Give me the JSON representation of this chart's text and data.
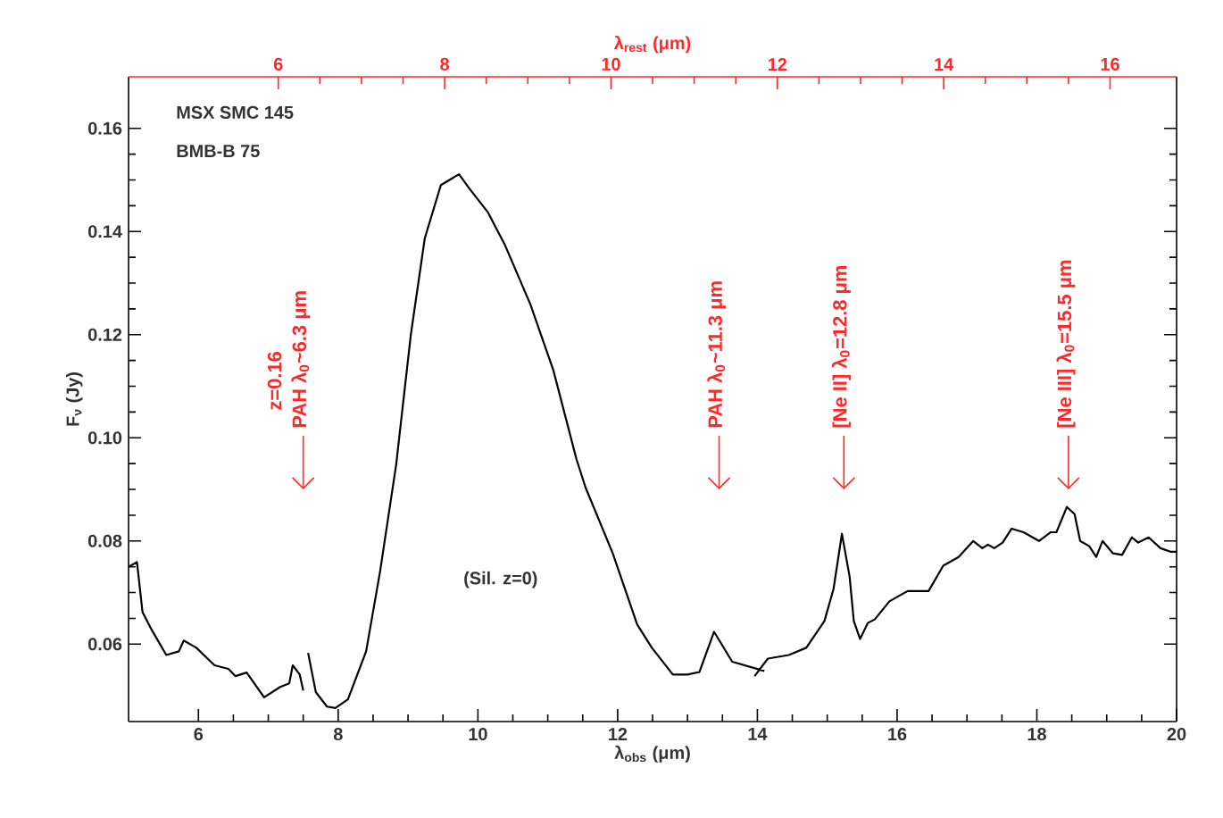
{
  "chart_data": {
    "type": "line",
    "title": "MSX SMC 145",
    "subtitle": "BMB-B 75",
    "xlabel": "λ$_{obs}$ (μm)",
    "ylabel": "F$_{ν}$ (Jy)",
    "x2label": "λ$_{rest}$ (μm)",
    "xlim": [
      5,
      20
    ],
    "xticks": [
      6,
      8,
      10,
      12,
      14,
      16,
      18,
      20
    ],
    "x2lim": [
      4.2,
      16.8
    ],
    "x2ticks": [
      6,
      8,
      10,
      12,
      14,
      16
    ],
    "ylim": [
      0.045,
      0.17
    ],
    "yticks": [
      {
        "value": 0.06,
        "label": "0.06"
      },
      {
        "value": 0.08,
        "label": "0.08"
      },
      {
        "value": 0.1,
        "label": "0.10"
      },
      {
        "value": 0.12,
        "label": "0.12"
      },
      {
        "value": 0.14,
        "label": "0.14"
      },
      {
        "value": 0.16,
        "label": "0.16"
      }
    ],
    "grid": false,
    "marker": "none",
    "line_style": "solid",
    "series": [
      {
        "color": "#000000",
        "x": [
          5.0,
          5.12,
          5.2,
          5.33,
          5.54,
          5.72,
          5.79,
          5.97,
          6.23,
          6.43,
          6.53,
          6.69,
          6.94,
          7.17,
          7.3,
          7.35,
          7.45,
          7.5,
          7.53,
          7.57,
          7.68,
          7.84,
          7.96,
          8.14,
          8.4,
          8.6,
          8.83,
          9.04,
          9.24,
          9.47,
          9.73,
          9.88,
          10.14,
          10.39,
          10.75,
          11.08,
          11.41,
          11.54,
          11.93,
          12.28,
          12.49,
          12.79,
          13.0,
          13.17,
          13.38,
          13.64,
          14.1,
          14.03,
          13.96,
          14.15,
          14.45,
          14.7,
          14.96,
          15.09,
          15.21,
          15.32,
          15.38,
          15.47,
          15.58,
          15.68,
          15.89,
          16.15,
          16.45,
          16.66,
          16.88,
          17.09,
          17.22,
          17.3,
          17.39,
          17.51,
          17.64,
          17.81,
          18.03,
          18.2,
          18.28,
          18.43,
          18.54,
          18.62,
          18.75,
          18.85,
          18.94,
          19.09,
          19.22,
          19.36,
          19.45,
          19.6,
          19.77,
          19.92,
          20.0
        ],
        "values": [
          0.075,
          0.0759,
          0.0662,
          0.0628,
          0.0579,
          0.0586,
          0.0607,
          0.0593,
          0.0559,
          0.0552,
          0.0538,
          0.0545,
          0.0497,
          0.0517,
          0.0524,
          0.0559,
          0.0541,
          0.051,
          null,
          0.0583,
          0.0507,
          0.0479,
          0.0476,
          0.0493,
          0.0586,
          0.0741,
          0.0948,
          0.12,
          0.1387,
          0.149,
          0.1511,
          0.1483,
          0.1438,
          0.1373,
          0.1259,
          0.1131,
          0.0959,
          0.0904,
          0.0776,
          0.0638,
          0.0593,
          0.0541,
          0.0541,
          0.0546,
          0.0624,
          0.0566,
          0.0548,
          null,
          0.0538,
          0.0572,
          0.0579,
          0.0593,
          0.0645,
          0.0707,
          0.0814,
          0.0731,
          0.0645,
          0.061,
          0.0641,
          0.0648,
          0.0683,
          0.0703,
          0.0703,
          0.0752,
          0.0769,
          0.08,
          0.0786,
          0.0793,
          0.0786,
          0.0797,
          0.0824,
          0.0817,
          0.08,
          0.0817,
          0.0817,
          0.0866,
          0.0852,
          0.08,
          0.079,
          0.0769,
          0.08,
          0.0776,
          0.0773,
          0.0807,
          0.0797,
          0.0807,
          0.0786,
          0.0779,
          0.0779
        ]
      }
    ],
    "ref_lines": [
      {
        "axis": "x2",
        "value": 6.3,
        "label": "PAH λ$_{0}$~6.3 μm",
        "color": "#ff2828"
      },
      {
        "axis": "x2",
        "value": 11.3,
        "label": "PAH λ$_{0}$~11.3 μm",
        "color": "#ff2828"
      },
      {
        "axis": "x2",
        "value": 12.8,
        "label": "[Ne II] λ$_{0}$=12.8 μm",
        "color": "#ff2828"
      },
      {
        "axis": "x2",
        "value": 15.5,
        "label": "[Ne III] λ$_{0}$=15.5 μm",
        "color": "#ff2828"
      }
    ],
    "annotations": [
      "z=0.16",
      "(Sil. z=0)"
    ]
  }
}
